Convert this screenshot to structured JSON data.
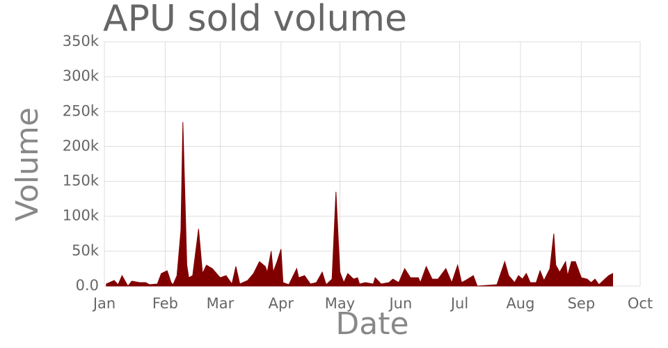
{
  "chart_data": {
    "type": "area",
    "title": "APU sold volume",
    "x_label": "Date",
    "y_label": "Volume",
    "color": "#800000",
    "grid": true,
    "xlim": [
      0,
      273
    ],
    "xticks": [
      {
        "value": 0,
        "label": "Jan"
      },
      {
        "value": 31,
        "label": "Feb"
      },
      {
        "value": 59,
        "label": "Mar"
      },
      {
        "value": 90,
        "label": "Apr"
      },
      {
        "value": 120,
        "label": "May"
      },
      {
        "value": 151,
        "label": "Jun"
      },
      {
        "value": 181,
        "label": "Jul"
      },
      {
        "value": 212,
        "label": "Aug"
      },
      {
        "value": 243,
        "label": "Sep"
      },
      {
        "value": 273,
        "label": "Oct"
      }
    ],
    "ylim": [
      0,
      350000
    ],
    "yticks": [
      {
        "value": 0,
        "label": "0.0"
      },
      {
        "value": 50000,
        "label": "50k"
      },
      {
        "value": 100000,
        "label": "100k"
      },
      {
        "value": 150000,
        "label": "150k"
      },
      {
        "value": 200000,
        "label": "200k"
      },
      {
        "value": 250000,
        "label": "250k"
      },
      {
        "value": 300000,
        "label": "300k"
      },
      {
        "value": 350000,
        "label": "350k"
      }
    ],
    "x": [
      1,
      5,
      7,
      9,
      11,
      12,
      14,
      18,
      21,
      23,
      27,
      29,
      32,
      34,
      35,
      37,
      39,
      40,
      42,
      43,
      45,
      48,
      50,
      52,
      55,
      59,
      62,
      65,
      67,
      69,
      73,
      76,
      79,
      82,
      83,
      85,
      86,
      88,
      90,
      91,
      94,
      98,
      99,
      102,
      105,
      108,
      111,
      113,
      116,
      118,
      120,
      122,
      124,
      127,
      129,
      130,
      133,
      137,
      138,
      141,
      145,
      147,
      150,
      153,
      156,
      160,
      161,
      164,
      167,
      170,
      174,
      177,
      180,
      182,
      184,
      188,
      190,
      195,
      200,
      204,
      206,
      209,
      211,
      213,
      215,
      217,
      220,
      222,
      224,
      227,
      229,
      230,
      232,
      235,
      236,
      238,
      240,
      243,
      246,
      248,
      250,
      252,
      255,
      257,
      259
    ],
    "values": [
      3000,
      8000,
      2000,
      15000,
      5000,
      0,
      7000,
      5000,
      5000,
      2000,
      3000,
      18000,
      22000,
      5000,
      2000,
      15000,
      80000,
      235000,
      30000,
      12000,
      15000,
      82000,
      18000,
      30000,
      25000,
      12000,
      15000,
      3000,
      28000,
      3000,
      8000,
      18000,
      35000,
      28000,
      20000,
      50000,
      20000,
      35000,
      53000,
      5000,
      2000,
      25000,
      12000,
      15000,
      3000,
      5000,
      20000,
      2000,
      10000,
      135000,
      20000,
      5000,
      18000,
      10000,
      12000,
      3000,
      5000,
      3000,
      12000,
      3000,
      5000,
      10000,
      5000,
      25000,
      12000,
      12000,
      5000,
      28000,
      10000,
      10000,
      25000,
      5000,
      30000,
      5000,
      8000,
      15000,
      0,
      1000,
      2000,
      35000,
      15000,
      5000,
      15000,
      10000,
      18000,
      5000,
      5000,
      22000,
      8000,
      25000,
      75000,
      30000,
      20000,
      35000,
      15000,
      35000,
      35000,
      12000,
      10000,
      5000,
      10000,
      2000,
      10000,
      15000,
      18000
    ]
  }
}
